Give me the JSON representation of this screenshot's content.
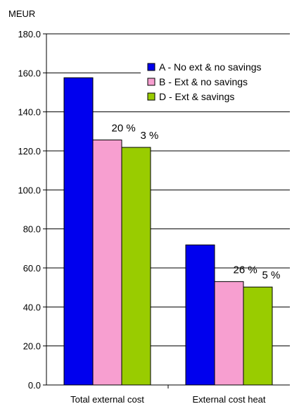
{
  "chart_data": {
    "type": "bar",
    "unit_label": "MEUR",
    "categories": [
      "Total external cost",
      "External cost heat"
    ],
    "series": [
      {
        "name": "A - No ext & no savings",
        "color": "#0000ee",
        "values": [
          157.5,
          71.8
        ]
      },
      {
        "name": "B - Ext & no savings",
        "color": "#f79fd0",
        "values": [
          125.6,
          53.0
        ]
      },
      {
        "name": "D - Ext & savings",
        "color": "#99cc00",
        "values": [
          121.8,
          50.2
        ]
      }
    ],
    "ylim": [
      0,
      180
    ],
    "yticks": [
      "0.0",
      "20.0",
      "40.0",
      "60.0",
      "80.0",
      "100.0",
      "120.0",
      "140.0",
      "160.0",
      "180.0"
    ],
    "grid": true,
    "legend_position": "top-right",
    "annotations": [
      {
        "text": "20 %",
        "category": 0,
        "series": 1
      },
      {
        "text": "3 %",
        "category": 0,
        "series": 2
      },
      {
        "text": "26 %",
        "category": 1,
        "series": 1
      },
      {
        "text": "5 %",
        "category": 1,
        "series": 2
      }
    ]
  }
}
